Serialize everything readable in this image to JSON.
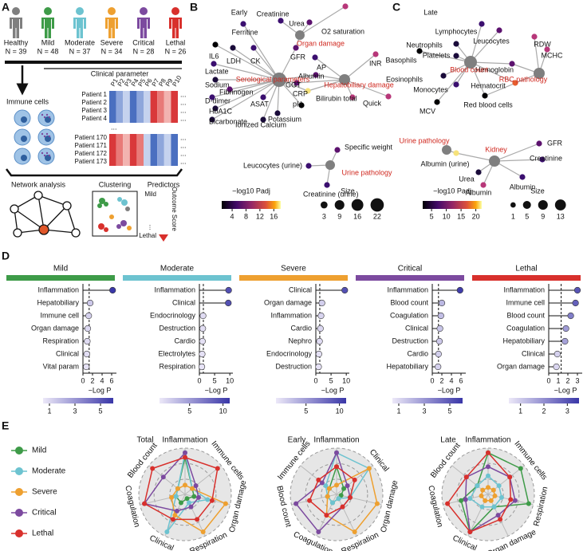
{
  "letters": {
    "A": "A",
    "B": "B",
    "C": "C",
    "D": "D",
    "E": "E"
  },
  "panel_a": {
    "groups": [
      {
        "name": "Healthy",
        "n": "N = 39",
        "color": "#7f7f7f"
      },
      {
        "name": "Mild",
        "n": "N = 48",
        "color": "#3e9b48"
      },
      {
        "name": "Moderate",
        "n": "N = 37",
        "color": "#6dc3d0"
      },
      {
        "name": "Severe",
        "n": "N = 34",
        "color": "#eea030"
      },
      {
        "name": "Critical",
        "n": "N = 28",
        "color": "#7c4a9f"
      },
      {
        "name": "Lethal",
        "n": "N = 26",
        "color": "#d8302c"
      }
    ],
    "clinical_parameter": "Clinical parameter",
    "immune_cells": "Immune cells",
    "parameters": [
      "P1",
      "P2",
      "P3",
      "P4",
      "P5",
      "P6",
      "P7",
      "P8",
      "P9",
      "P10"
    ],
    "patients_top": [
      "Patient 1",
      "Patient 2",
      "Patient 3",
      "Patient 4"
    ],
    "patients_bottom": [
      "Patient 170",
      "Patient 171",
      "Patient 172",
      "Patient 173"
    ],
    "ellipsis": "...",
    "network_analysis": "Network analysis",
    "clustering": "Clustering",
    "predictors": "Predictors",
    "outcome_score": "Outcome Score",
    "mild": "Mild",
    "lethal": "Lethal"
  },
  "panel_b": {
    "title": "Early",
    "hubs": [
      {
        "label": "Serological parameters"
      },
      {
        "label": "Organ damage"
      },
      {
        "label": "Hepatobiliary damage"
      },
      {
        "label": "Urine pathology"
      }
    ],
    "nodes": [
      {
        "label": "Creatinine",
        "color": "#3b0f6f"
      },
      {
        "label": "Urea",
        "color": "#5c126e"
      },
      {
        "label": "O2 saturation",
        "color": "#b73779"
      },
      {
        "label": "Ferritine",
        "color": "#3b0f6f"
      },
      {
        "label": "IL6",
        "color": "#000004"
      },
      {
        "label": "LDH",
        "color": "#1a0b3a"
      },
      {
        "label": "CK",
        "color": "#3b0f6f"
      },
      {
        "label": "GFR",
        "color": "#5c126e"
      },
      {
        "label": "AP",
        "color": "#3b0f6f"
      },
      {
        "label": "Albumin",
        "color": "#5c126e"
      },
      {
        "label": "INR",
        "color": "#b73779"
      },
      {
        "label": "Lactate",
        "color": "#3b0f6f"
      },
      {
        "label": "Sodium",
        "color": "#1a0b3a"
      },
      {
        "label": "Fibrinogen",
        "color": "#5c126e"
      },
      {
        "label": "D-dimer",
        "color": "#3b0f6f"
      },
      {
        "label": "HbA1C",
        "color": "#1a0b3a"
      },
      {
        "label": "Bicarbonate",
        "color": "#1a0b3a"
      },
      {
        "label": "ASAT",
        "color": "#3b0f6f"
      },
      {
        "label": "CRP",
        "color": "#f6e27a"
      },
      {
        "label": "GGT",
        "color": "#5c126e"
      },
      {
        "label": "pH",
        "color": "#000004"
      },
      {
        "label": "Bilirubin total",
        "color": "#b73779"
      },
      {
        "label": "Quick",
        "color": "#b73779"
      },
      {
        "label": "Ionized Calcium",
        "color": "#1a0b3a"
      },
      {
        "label": "Potassium",
        "color": "#1a0b3a"
      },
      {
        "label": "Specific weight",
        "color": "#5c126e"
      },
      {
        "label": "Leucocytes (urine)",
        "color": "#3b0f6f"
      },
      {
        "label": "Creatinine (urine)",
        "color": "#3b0f6f"
      }
    ],
    "legend": {
      "colorbar_title": "−log10 Padj",
      "clim": [
        1,
        18
      ],
      "cticks": [
        4,
        8,
        12,
        16
      ],
      "size_title": "Size",
      "sizes": [
        3,
        9,
        16,
        22
      ]
    }
  },
  "panel_c": {
    "title": "Late",
    "hubs": [
      {
        "label": "Blood count"
      },
      {
        "label": "RBC pathology"
      },
      {
        "label": "Urine pathology"
      },
      {
        "label": "Kidney"
      }
    ],
    "nodes": [
      {
        "label": "Lymphocytes",
        "color": "#3b0f6f"
      },
      {
        "label": "Leucocytes",
        "color": "#5c126e"
      },
      {
        "label": "Neutrophils",
        "color": "#1a0b3a"
      },
      {
        "label": "Platelets",
        "color": "#1a0b3a"
      },
      {
        "label": "Basophils",
        "color": "#000004"
      },
      {
        "label": "RDW",
        "color": "#b73779"
      },
      {
        "label": "MCHC",
        "color": "#b73779"
      },
      {
        "label": "Hemoglobin",
        "color": "#5c126e"
      },
      {
        "label": "Eosinophils",
        "color": "#1a0b3a"
      },
      {
        "label": "Monocytes",
        "color": "#3b0f6f"
      },
      {
        "label": "Hematocrit",
        "color": "#e65d2f"
      },
      {
        "label": "Red blood cells",
        "color": "#000004"
      },
      {
        "label": "MCV",
        "color": "#000004"
      },
      {
        "label": "Albumin (urine)",
        "color": "#f6e27a"
      },
      {
        "label": "GFR",
        "color": "#5c126e"
      },
      {
        "label": "Creatinine",
        "color": "#3b0f6f"
      },
      {
        "label": "Urea",
        "color": "#1a0b3a"
      },
      {
        "label": "Albumin",
        "color": "#b73779"
      },
      {
        "label": "Albumin",
        "color": "#3b0f6f"
      }
    ],
    "legend": {
      "colorbar_title": "−log10 Padj",
      "clim": [
        2,
        22
      ],
      "cticks": [
        5,
        10,
        15,
        20
      ],
      "size_title": "Size",
      "sizes": [
        1,
        5,
        9,
        13
      ]
    }
  },
  "panel_e_legend": [
    {
      "name": "Mild",
      "color": "#3e9b48"
    },
    {
      "name": "Moderate",
      "color": "#6dc3d0"
    },
    {
      "name": "Severe",
      "color": "#eea030"
    },
    {
      "name": "Critical",
      "color": "#7c4a9f"
    },
    {
      "name": "Lethal",
      "color": "#d8302c"
    }
  ],
  "chart_data": [
    {
      "type": "lollipop",
      "title": "Mild",
      "color": "#3e9b48",
      "x_label": "−Log P",
      "categories": [
        "Inflammation",
        "Hepatobiliary",
        "Immune cell",
        "Organ damage",
        "Respiration",
        "Clinical",
        "Vital param"
      ],
      "values": [
        6.2,
        1.5,
        1.2,
        1.0,
        0.9,
        0.8,
        0.7
      ],
      "xlim": [
        0,
        7
      ],
      "xticks": [
        0,
        2,
        4,
        6
      ],
      "threshold": 1.3,
      "clim": [
        0.5,
        6
      ],
      "cticks": [
        1,
        3,
        5
      ]
    },
    {
      "type": "lollipop",
      "title": "Moderate",
      "color": "#6dc3d0",
      "x_label": "−Log P",
      "categories": [
        "Inflammation",
        "Clinical",
        "Endocrinology",
        "Destruction",
        "Cardio",
        "Electrolytes",
        "Respiration"
      ],
      "values": [
        9.6,
        9.5,
        1.2,
        1.1,
        1.0,
        0.9,
        0.8
      ],
      "xlim": [
        0,
        11
      ],
      "xticks": [
        0,
        5,
        10
      ],
      "threshold": 1.3,
      "clim": [
        0.5,
        11
      ],
      "cticks": [
        5,
        10
      ]
    },
    {
      "type": "lollipop",
      "title": "Severe",
      "color": "#eea030",
      "x_label": "−Log P",
      "categories": [
        "Clinical",
        "Organ damage",
        "Inflammation",
        "Cardio",
        "Nephro",
        "Endocrinology",
        "Destruction"
      ],
      "values": [
        9.5,
        2.0,
        1.7,
        1.5,
        1.2,
        1.0,
        0.9
      ],
      "xlim": [
        0,
        11
      ],
      "xticks": [
        0,
        5,
        10
      ],
      "threshold": 1.3,
      "clim": [
        0.5,
        11
      ],
      "cticks": [
        5,
        10
      ]
    },
    {
      "type": "lollipop",
      "title": "Critical",
      "color": "#7c4a9f",
      "x_label": "−Log P",
      "categories": [
        "Inflammation",
        "Blood count",
        "Coagulation",
        "Clinical",
        "Destruction",
        "Cardio",
        "Hepatobiliary"
      ],
      "values": [
        5.8,
        2.0,
        1.8,
        1.6,
        1.5,
        1.3,
        1.2
      ],
      "xlim": [
        0,
        7
      ],
      "xticks": [
        0,
        2,
        4,
        6
      ],
      "threshold": 1.3,
      "clim": [
        0.5,
        6
      ],
      "cticks": [
        1,
        3,
        5
      ]
    },
    {
      "type": "lollipop",
      "title": "Lethal",
      "color": "#d8302c",
      "x_label": "−Log P",
      "categories": [
        "Inflammation",
        "Immune cell",
        "Blood count",
        "Coagulation",
        "Hepatobiliary",
        "Clinical",
        "Organ damage"
      ],
      "values": [
        3.0,
        2.8,
        2.3,
        1.8,
        1.7,
        0.9,
        0.8
      ],
      "xlim": [
        0,
        3.5
      ],
      "xticks": [
        0,
        1,
        2,
        3
      ],
      "threshold": 1.3,
      "clim": [
        0.5,
        3.5
      ],
      "cticks": [
        1,
        2,
        3
      ]
    },
    {
      "type": "radar",
      "title": "Total",
      "rlim": [
        0,
        1
      ],
      "rticks": [
        0.33,
        0.67,
        1
      ],
      "categories": [
        "Inflammation",
        "Immune cells",
        "Organ damage",
        "Respiration",
        "Clinical",
        "Coagulation",
        "Blood count"
      ],
      "series": [
        {
          "name": "Mild",
          "color": "#3e9b48",
          "values": [
            0.8,
            0.2,
            0.2,
            0.1,
            0.2,
            0.2,
            0.2
          ]
        },
        {
          "name": "Moderate",
          "color": "#6dc3d0",
          "values": [
            0.9,
            0.2,
            0.5,
            0.2,
            0.9,
            0.2,
            0.2
          ]
        },
        {
          "name": "Severe",
          "color": "#eea030",
          "values": [
            0.2,
            0.2,
            0.9,
            0.9,
            0.5,
            0.3,
            0.2
          ]
        },
        {
          "name": "Critical",
          "color": "#7c4a9f",
          "values": [
            0.9,
            0.3,
            0.3,
            0.3,
            0.4,
            0.9,
            0.6
          ]
        },
        {
          "name": "Lethal",
          "color": "#d8302c",
          "values": [
            0.8,
            0.9,
            0.6,
            0.6,
            0.6,
            0.9,
            0.9
          ]
        }
      ]
    },
    {
      "type": "radar",
      "title": "Early",
      "rlim": [
        0,
        1
      ],
      "rticks": [
        0.33,
        0.67,
        1
      ],
      "categories": [
        "Inflammation",
        "Clinical",
        "Organ damage",
        "Respiration",
        "Coagulation",
        "Blood count",
        "Immune cells"
      ],
      "series": [
        {
          "name": "Mild",
          "color": "#3e9b48",
          "values": [
            0.6,
            0.2,
            0.1,
            0.1,
            0.2,
            0.2,
            0.2
          ]
        },
        {
          "name": "Moderate",
          "color": "#6dc3d0",
          "values": [
            0.9,
            0.9,
            0.3,
            0.1,
            0.2,
            0.2,
            0.3
          ]
        },
        {
          "name": "Severe",
          "color": "#eea030",
          "values": [
            0.2,
            0.9,
            0.9,
            0.9,
            0.5,
            0.2,
            0.2
          ]
        },
        {
          "name": "Critical",
          "color": "#7c4a9f",
          "values": [
            0.9,
            0.3,
            0.3,
            0.3,
            0.9,
            0.9,
            0.4
          ]
        },
        {
          "name": "Lethal",
          "color": "#d8302c",
          "values": [
            0.6,
            0.5,
            0.3,
            0.3,
            0.5,
            0.6,
            0.5
          ]
        }
      ]
    },
    {
      "type": "radar",
      "title": "Late",
      "rlim": [
        0,
        1
      ],
      "rticks": [
        0.33,
        0.67,
        1
      ],
      "categories": [
        "Inflammation",
        "Immune cells",
        "Respiration",
        "Organ damage",
        "Clinical",
        "Coagulation",
        "Blood count"
      ],
      "series": [
        {
          "name": "Mild",
          "color": "#3e9b48",
          "values": [
            0.9,
            0.9,
            0.9,
            0.3,
            0.9,
            0.6,
            0.3
          ]
        },
        {
          "name": "Moderate",
          "color": "#6dc3d0",
          "values": [
            0.4,
            0.3,
            0.3,
            0.3,
            0.3,
            0.4,
            0.3
          ]
        },
        {
          "name": "Severe",
          "color": "#eea030",
          "values": [
            0.15,
            0.15,
            0.15,
            0.15,
            0.15,
            0.15,
            0.15
          ]
        },
        {
          "name": "Critical",
          "color": "#7c4a9f",
          "values": [
            0.6,
            0.6,
            0.6,
            0.5,
            0.9,
            0.5,
            0.6
          ]
        },
        {
          "name": "Lethal",
          "color": "#d8302c",
          "values": [
            0.9,
            0.6,
            0.5,
            0.6,
            0.9,
            0.9,
            0.6
          ]
        }
      ]
    }
  ]
}
